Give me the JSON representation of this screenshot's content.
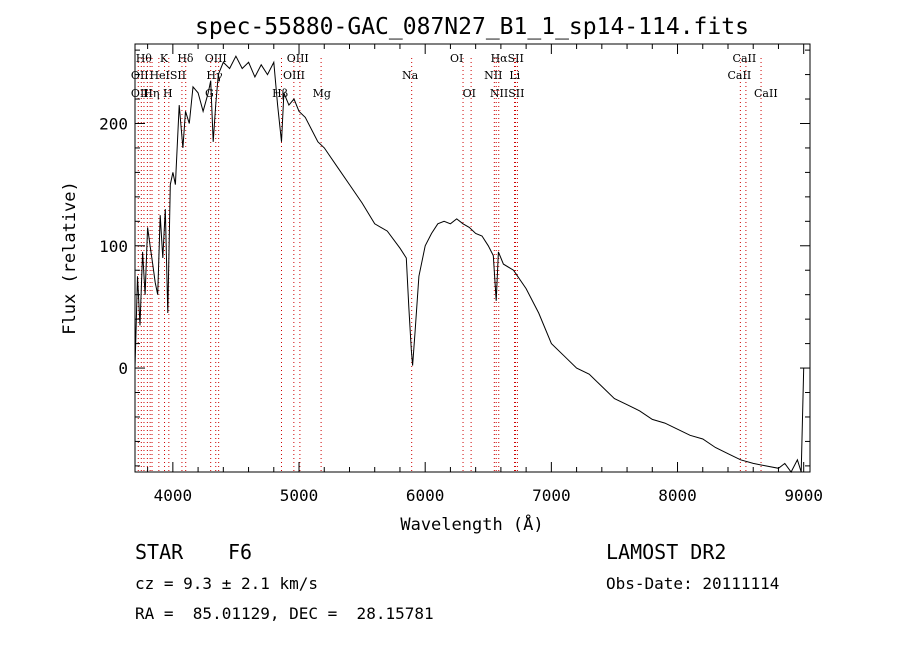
{
  "chart_data": {
    "type": "line",
    "title": "spec-55880-GAC_087N27_B1_1_sp14-114.fits",
    "xlabel": "Wavelength (Å)",
    "ylabel": "Flux (relative)",
    "xlim": [
      3700,
      9050
    ],
    "ylim": [
      -85,
      265
    ],
    "x_ticks": [
      4000,
      5000,
      6000,
      7000,
      8000,
      9000
    ],
    "x_tick_labels": [
      "4000",
      "5000",
      "6000",
      "7000",
      "8000",
      "9000"
    ],
    "y_ticks": [
      0,
      100,
      200
    ],
    "y_tick_labels": [
      "0",
      "100",
      "200"
    ],
    "grid": false,
    "line_color": "#000000",
    "marker_color": "#cc0000",
    "series": [
      {
        "x": [
          3700,
          3720,
          3740,
          3760,
          3780,
          3800,
          3820,
          3840,
          3860,
          3880,
          3900,
          3920,
          3940,
          3960,
          3980,
          4000,
          4020,
          4050,
          4080,
          4100,
          4130,
          4160,
          4200,
          4240,
          4280,
          4300,
          4320,
          4340,
          4360,
          4400,
          4450,
          4500,
          4550,
          4600,
          4650,
          4700,
          4750,
          4800,
          4830,
          4861,
          4880,
          4920,
          4960,
          5000,
          5050,
          5100,
          5150,
          5200,
          5300,
          5400,
          5500,
          5600,
          5700,
          5800,
          5850,
          5870,
          5890,
          5900,
          5920,
          5950,
          6000,
          6050,
          6100,
          6150,
          6200,
          6250,
          6300,
          6350,
          6400,
          6450,
          6500,
          6540,
          6563,
          6580,
          6620,
          6700,
          6800,
          6900,
          7000,
          7100,
          7200,
          7300,
          7400,
          7500,
          7600,
          7700,
          7800,
          7900,
          8000,
          8100,
          8200,
          8300,
          8400,
          8500,
          8600,
          8700,
          8800,
          8850,
          8900,
          8950,
          8980,
          9000
        ],
        "y": [
          0,
          75,
          35,
          95,
          60,
          115,
          100,
          85,
          70,
          60,
          125,
          90,
          130,
          45,
          150,
          160,
          150,
          215,
          180,
          210,
          200,
          230,
          225,
          210,
          225,
          235,
          185,
          215,
          240,
          250,
          245,
          255,
          245,
          250,
          238,
          248,
          240,
          250,
          215,
          185,
          225,
          215,
          220,
          210,
          205,
          195,
          185,
          180,
          165,
          150,
          135,
          118,
          112,
          98,
          90,
          50,
          15,
          2,
          30,
          75,
          100,
          110,
          118,
          120,
          118,
          122,
          118,
          115,
          110,
          108,
          100,
          92,
          55,
          95,
          85,
          80,
          65,
          45,
          20,
          10,
          0,
          -5,
          -15,
          -25,
          -30,
          -35,
          -42,
          -45,
          -50,
          -55,
          -58,
          -65,
          -70,
          -75,
          -78,
          -80,
          -82,
          -78,
          -85,
          -75,
          -85,
          0
        ]
      }
    ],
    "lines": [
      {
        "x": 3726,
        "labels": [
          "OII"
        ]
      },
      {
        "x": 3750,
        "labels": [
          "OII"
        ]
      },
      {
        "x": 3771,
        "labels": [
          "Hθ"
        ]
      },
      {
        "x": 3798,
        "labels": [
          "Hθ"
        ]
      },
      {
        "x": 3820,
        "labels": [
          "HeI"
        ]
      },
      {
        "x": 3835,
        "labels": [
          "Hη"
        ]
      },
      {
        "x": 3889,
        "labels": [
          "HeI"
        ]
      },
      {
        "x": 3934,
        "labels": [
          "K"
        ]
      },
      {
        "x": 3968,
        "labels": [
          "H"
        ]
      },
      {
        "x": 4072,
        "labels": [
          "SII"
        ]
      },
      {
        "x": 4102,
        "labels": [
          "Hδ"
        ]
      },
      {
        "x": 4300,
        "labels": [
          "G"
        ]
      },
      {
        "x": 4340,
        "labels": [
          "Hγ"
        ]
      },
      {
        "x": 4363,
        "labels": [
          "OIII"
        ]
      },
      {
        "x": 4861,
        "labels": [
          "Hβ"
        ]
      },
      {
        "x": 4959,
        "labels": [
          "OIII"
        ]
      },
      {
        "x": 5007,
        "labels": [
          "OIII"
        ]
      },
      {
        "x": 5175,
        "labels": [
          "Mg"
        ]
      },
      {
        "x": 5893,
        "labels": [
          "Na"
        ]
      },
      {
        "x": 6300,
        "labels": [
          "OI"
        ]
      },
      {
        "x": 6364,
        "labels": [
          "OI"
        ]
      },
      {
        "x": 6548,
        "labels": [
          "NII"
        ]
      },
      {
        "x": 6563,
        "labels": [
          "Hα"
        ]
      },
      {
        "x": 6583,
        "labels": [
          "NII"
        ]
      },
      {
        "x": 6708,
        "labels": [
          "Li"
        ]
      },
      {
        "x": 6716,
        "labels": [
          "SII"
        ]
      },
      {
        "x": 6731,
        "labels": [
          "SII"
        ]
      },
      {
        "x": 8498,
        "labels": [
          "CaII"
        ]
      },
      {
        "x": 8542,
        "labels": [
          "CaII"
        ]
      },
      {
        "x": 8662,
        "labels": [
          "CaII"
        ]
      }
    ],
    "line_label_texts": [
      {
        "text": "Hθ",
        "x": 3770,
        "row": 0
      },
      {
        "text": "K",
        "x": 3930,
        "row": 0
      },
      {
        "text": "Hδ",
        "x": 4100,
        "row": 0
      },
      {
        "text": "OIII",
        "x": 4340,
        "row": 0
      },
      {
        "text": "OIII",
        "x": 4990,
        "row": 0
      },
      {
        "text": "OI",
        "x": 6250,
        "row": 0
      },
      {
        "text": "HαSII",
        "x": 6650,
        "row": 0
      },
      {
        "text": "CaII",
        "x": 8530,
        "row": 0
      },
      {
        "text": "OII",
        "x": 3738,
        "row": 1
      },
      {
        "text": "HeISII",
        "x": 3960,
        "row": 1
      },
      {
        "text": "Hγ",
        "x": 4330,
        "row": 1
      },
      {
        "text": "OIII",
        "x": 4960,
        "row": 1
      },
      {
        "text": "Na",
        "x": 5880,
        "row": 1
      },
      {
        "text": "NII",
        "x": 6540,
        "row": 1
      },
      {
        "text": "Li",
        "x": 6710,
        "row": 1
      },
      {
        "text": "CaII",
        "x": 8490,
        "row": 1
      },
      {
        "text": "OII",
        "x": 3738,
        "row": 2
      },
      {
        "text": "Hη",
        "x": 3830,
        "row": 2
      },
      {
        "text": "H",
        "x": 3960,
        "row": 2
      },
      {
        "text": "G",
        "x": 4290,
        "row": 2
      },
      {
        "text": "Hβ",
        "x": 4850,
        "row": 2
      },
      {
        "text": "Mg",
        "x": 5180,
        "row": 2
      },
      {
        "text": "OI",
        "x": 6350,
        "row": 2
      },
      {
        "text": "NIISII",
        "x": 6650,
        "row": 2
      },
      {
        "text": "CaII",
        "x": 8700,
        "row": 2
      }
    ]
  },
  "info": {
    "object_class": "STAR",
    "subclass": "F6",
    "survey": "LAMOST DR2",
    "cz": "cz = 9.3 ± 2.1 km/s",
    "obs_date": "Obs-Date: 20111114",
    "coords": "RA =  85.01129, DEC =  28.15781"
  }
}
